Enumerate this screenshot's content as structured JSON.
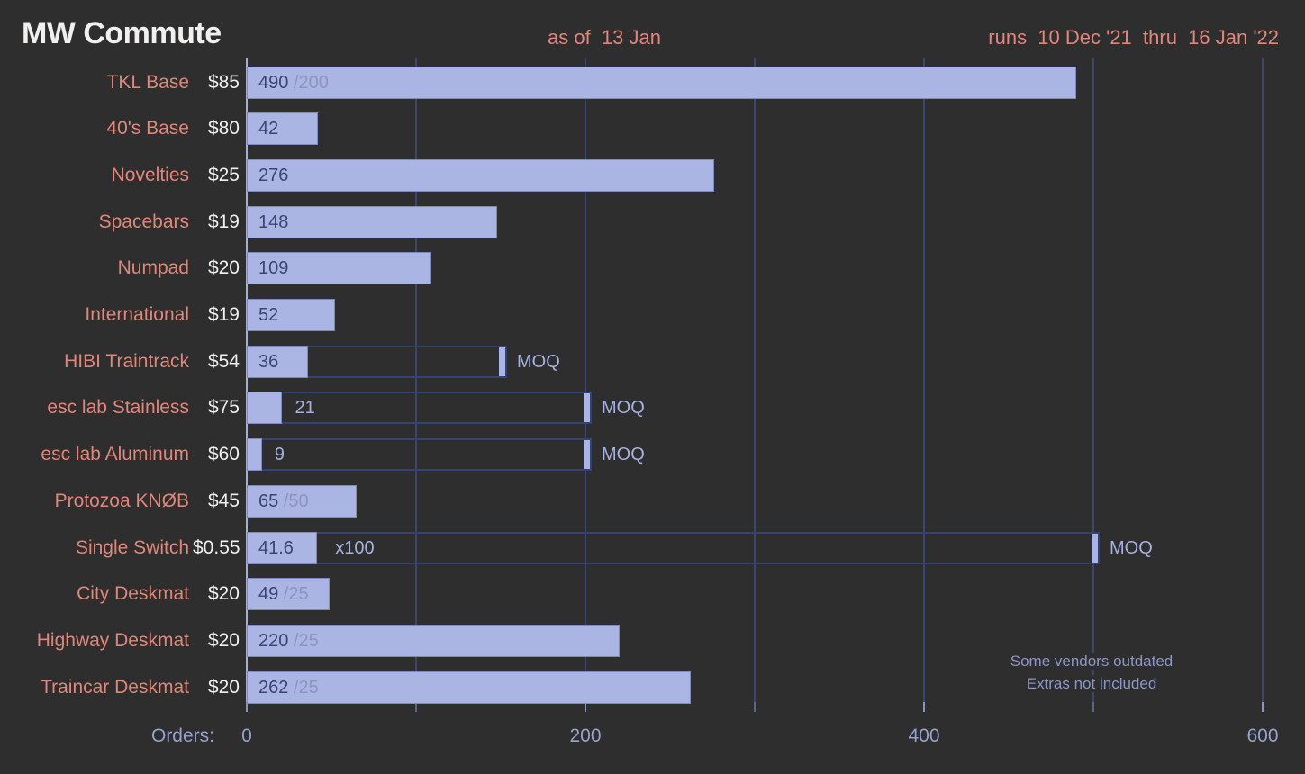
{
  "colors": {
    "background": "#2e2e2e",
    "bar_fill": "#abb5e3",
    "bar_border": "#7e89bd",
    "salmon": "#e0867a",
    "white_text": "#f1f0ef",
    "navy_text": "#3b4574",
    "muted_goal": "#8d94bd",
    "periwinkle_text": "#a7b1de",
    "axis_text": "#97a1ce",
    "gridline": "#3a4570",
    "zero_line": "#a4aedc",
    "outline_border": "#36426f",
    "note_text": "#8c96c8"
  },
  "chart_data": {
    "type": "bar",
    "orientation": "horizontal",
    "title": "MW Commute",
    "as_of": "as of  13 Jan",
    "run_dates": "runs  10 Dec '21  thru  16 Jan '22",
    "axis_label": "Orders:",
    "xlim": [
      0,
      600
    ],
    "grid": true,
    "moq_label": "MOQ",
    "ticks": [
      {
        "value": 0,
        "label": "0"
      },
      {
        "value": 100,
        "label": ""
      },
      {
        "value": 200,
        "label": "200"
      },
      {
        "value": 300,
        "label": ""
      },
      {
        "value": 400,
        "label": "400"
      },
      {
        "value": 500,
        "label": ""
      },
      {
        "value": 600,
        "label": "600"
      }
    ],
    "rows": [
      {
        "label": "TKL Base",
        "price": "$85",
        "orders": 490,
        "orders_display": "490",
        "goal": 200,
        "goal_display": "/200",
        "moq": null,
        "value_placement": "inside",
        "extra": null
      },
      {
        "label": "40's Base",
        "price": "$80",
        "orders": 42,
        "orders_display": "42",
        "goal": null,
        "goal_display": null,
        "moq": null,
        "value_placement": "inside",
        "extra": null
      },
      {
        "label": "Novelties",
        "price": "$25",
        "orders": 276,
        "orders_display": "276",
        "goal": null,
        "goal_display": null,
        "moq": null,
        "value_placement": "inside",
        "extra": null
      },
      {
        "label": "Spacebars",
        "price": "$19",
        "orders": 148,
        "orders_display": "148",
        "goal": null,
        "goal_display": null,
        "moq": null,
        "value_placement": "inside",
        "extra": null
      },
      {
        "label": "Numpad",
        "price": "$20",
        "orders": 109,
        "orders_display": "109",
        "goal": null,
        "goal_display": null,
        "moq": null,
        "value_placement": "inside",
        "extra": null
      },
      {
        "label": "International",
        "price": "$19",
        "orders": 52,
        "orders_display": "52",
        "goal": null,
        "goal_display": null,
        "moq": null,
        "value_placement": "inside",
        "extra": null
      },
      {
        "label": "HIBI Traintrack",
        "price": "$54",
        "orders": 36,
        "orders_display": "36",
        "goal": null,
        "goal_display": null,
        "moq": 150,
        "value_placement": "inside",
        "extra": null
      },
      {
        "label": "esc lab Stainless",
        "price": "$75",
        "orders": 21,
        "orders_display": "21",
        "goal": null,
        "goal_display": null,
        "moq": 200,
        "value_placement": "outside",
        "extra": null
      },
      {
        "label": "esc lab Aluminum",
        "price": "$60",
        "orders": 9,
        "orders_display": "9",
        "goal": null,
        "goal_display": null,
        "moq": 200,
        "value_placement": "outside",
        "extra": null
      },
      {
        "label": "Protozoa KNØB",
        "price": "$45",
        "orders": 65,
        "orders_display": "65",
        "goal": 50,
        "goal_display": "/50",
        "moq": null,
        "value_placement": "inside",
        "extra": null
      },
      {
        "label": "Single Switch",
        "price": "$0.55",
        "orders": 41.6,
        "orders_display": "41.6",
        "goal": null,
        "goal_display": null,
        "moq": 500,
        "value_placement": "inside",
        "extra": "x100"
      },
      {
        "label": "City Deskmat",
        "price": "$20",
        "orders": 49,
        "orders_display": "49",
        "goal": 25,
        "goal_display": "/25",
        "moq": null,
        "value_placement": "inside",
        "extra": null
      },
      {
        "label": "Highway Deskmat",
        "price": "$20",
        "orders": 220,
        "orders_display": "220",
        "goal": 25,
        "goal_display": "/25",
        "moq": null,
        "value_placement": "inside",
        "extra": null
      },
      {
        "label": "Traincar Deskmat",
        "price": "$20",
        "orders": 262,
        "orders_display": "262",
        "goal": 25,
        "goal_display": "/25",
        "moq": null,
        "value_placement": "inside",
        "extra": null
      }
    ],
    "notes": [
      "Some vendors outdated",
      "Extras not included"
    ]
  }
}
